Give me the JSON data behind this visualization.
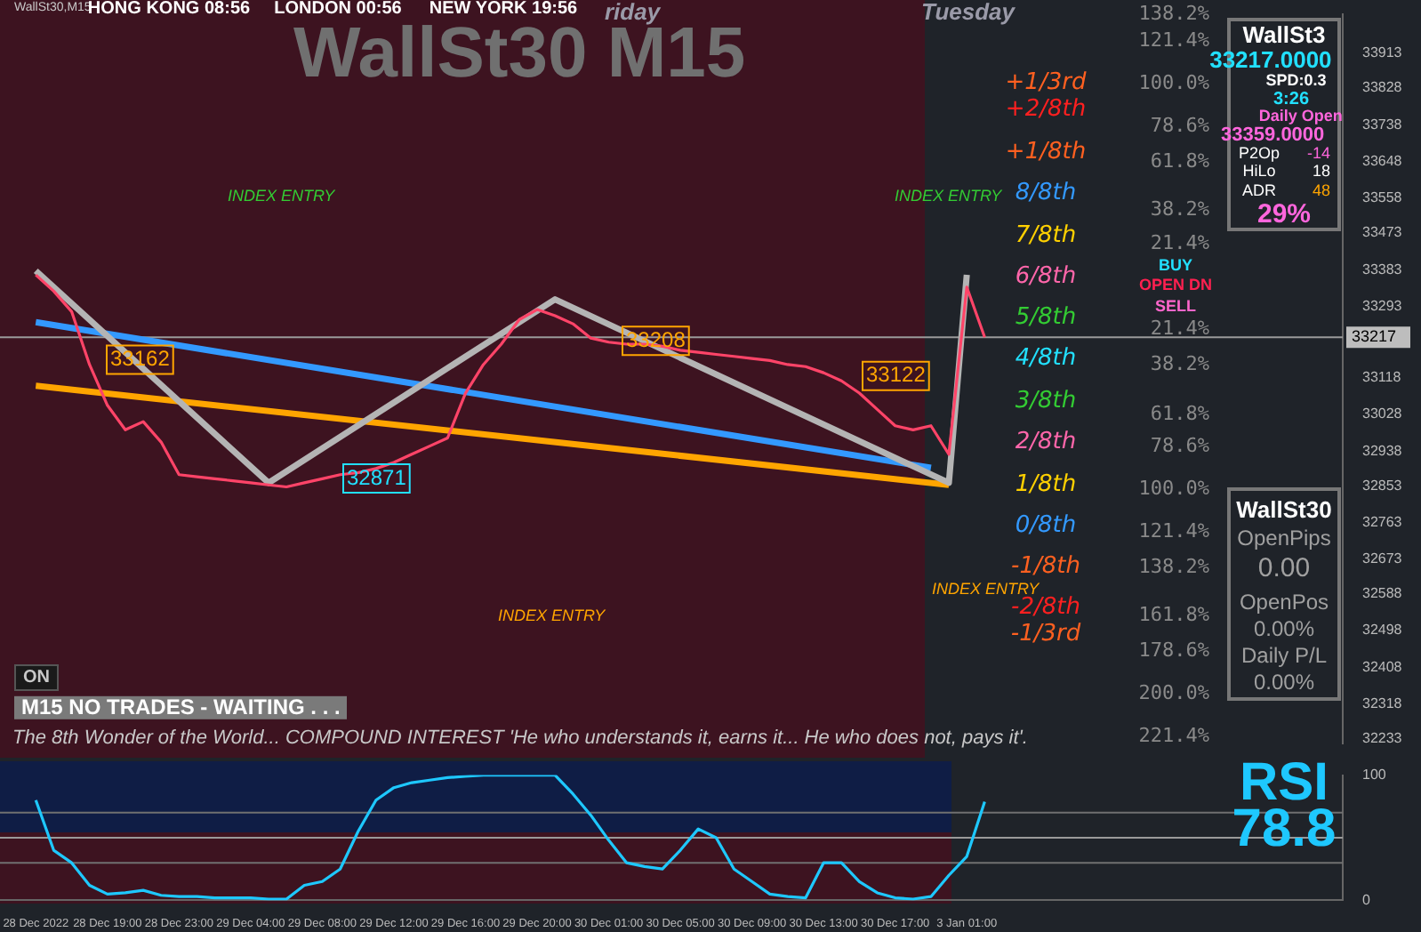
{
  "chart_data": [
    {
      "type": "line",
      "title": "WallSt30 M15",
      "categories": [
        null,
        null,
        null,
        null,
        null,
        null,
        null,
        null,
        null,
        null,
        null,
        null,
        null,
        null,
        null,
        null,
        null,
        null,
        null,
        null,
        null,
        null,
        null,
        null,
        null,
        null,
        null,
        null,
        null,
        null,
        null,
        null,
        null,
        null,
        null,
        null,
        null,
        null,
        null,
        null,
        null,
        null,
        null,
        null,
        null,
        null,
        null,
        null,
        null,
        null,
        null,
        null,
        null,
        null
      ],
      "series": [
        {
          "color": "#ff4468",
          "values": [
            33370,
            33330,
            33280,
            33150,
            33050,
            32990,
            33010,
            32960,
            32880,
            32875,
            32870,
            32865,
            32860,
            32855,
            32850,
            32860,
            32870,
            32880,
            32885,
            32895,
            32910,
            32930,
            32950,
            32970,
            33080,
            33150,
            33200,
            33260,
            33285,
            33270,
            33250,
            33215,
            33205,
            33200,
            33200,
            33195,
            33185,
            33180,
            33175,
            33170,
            33165,
            33160,
            33150,
            33145,
            33130,
            33110,
            33080,
            33040,
            33000,
            32990,
            33000,
            32930,
            33340,
            33217
          ]
        },
        {
          "color": "#b4b4b4",
          "values": [
            33380,
            null,
            null,
            null,
            null,
            null,
            null,
            null,
            null,
            null,
            null,
            null,
            null,
            32860,
            null,
            null,
            null,
            null,
            null,
            null,
            null,
            null,
            null,
            null,
            null,
            null,
            null,
            null,
            null,
            33310,
            null,
            null,
            null,
            null,
            null,
            null,
            null,
            null,
            null,
            null,
            null,
            null,
            null,
            null,
            null,
            null,
            null,
            null,
            null,
            null,
            null,
            32860,
            33370,
            null
          ]
        },
        {
          "color": "#ffa500",
          "values": [
            33098,
            null,
            null,
            null,
            null,
            null,
            null,
            null,
            null,
            null,
            null,
            null,
            null,
            null,
            null,
            null,
            null,
            null,
            null,
            null,
            null,
            null,
            null,
            null,
            null,
            null,
            null,
            null,
            null,
            null,
            null,
            null,
            null,
            null,
            null,
            null,
            null,
            null,
            null,
            null,
            null,
            null,
            null,
            null,
            null,
            null,
            null,
            null,
            null,
            null,
            null,
            32855,
            null,
            null
          ]
        },
        {
          "color": "#3399ff",
          "values": [
            33254,
            null,
            null,
            null,
            null,
            null,
            null,
            null,
            null,
            null,
            null,
            null,
            null,
            null,
            null,
            null,
            null,
            null,
            null,
            null,
            null,
            null,
            null,
            null,
            null,
            null,
            null,
            null,
            null,
            null,
            null,
            null,
            null,
            null,
            null,
            null,
            null,
            null,
            null,
            null,
            null,
            null,
            null,
            null,
            null,
            null,
            null,
            null,
            null,
            null,
            32897,
            null,
            null,
            null
          ]
        }
      ],
      "ylim": [
        32220,
        34010
      ],
      "yticks": [
        33913,
        33828,
        33738,
        33648,
        33558,
        33473,
        33383,
        33293,
        33118,
        33028,
        32938,
        32853,
        32763,
        32673,
        32588,
        32498,
        32408,
        32318,
        32233
      ],
      "ref_lines": [
        {
          "axis": "y",
          "value": 33217,
          "label": "33217",
          "color": "#9a9a9a"
        }
      ],
      "tick_labels": "y",
      "grid": false,
      "legend": false,
      "marker": "none",
      "line_style": "solid",
      "annotations": [
        "WallSt30,M15",
        "HONG KONG 08:56",
        "LONDON 00:56",
        "NEW YORK 19:56",
        "riday",
        "Tuesday",
        "INDEX ENTRY",
        "INDEX ENTRY",
        "INDEX ENTRY",
        "INDEX ENTRY",
        "+1/3rd",
        "+2/8th",
        "+1/8th",
        "8/8th",
        "7/8th",
        "6/8th",
        "5/8th",
        "4/8th",
        "3/8th",
        "2/8th",
        "1/8th",
        "0/8th",
        "-1/8th",
        "-2/8th",
        "-1/3rd",
        "138.2%",
        "121.4%",
        "100.0%",
        "78.6%",
        "61.8%",
        "38.2%",
        "21.4%",
        "21.4%",
        "38.2%",
        "61.8%",
        "78.6%",
        "100.0%",
        "121.4%",
        "138.2%",
        "161.8%",
        "178.6%",
        "200.0%",
        "221.4%",
        "BUY",
        "OPEN DN",
        "SELL",
        "ON",
        "M15  NO TRADES - WAITING . . .",
        "The 8th Wonder of the World... COMPOUND INTEREST 'He who understands it, earns it... He who does not, pays it'.",
        {
          "text": "33162",
          "y": 33162
        },
        {
          "text": "33208",
          "y": 33208
        },
        {
          "text": "33122",
          "y": 33122
        },
        {
          "text": "32871",
          "y": 32871
        }
      ]
    },
    {
      "type": "line",
      "categories": [
        "28 Dec 2022",
        null,
        null,
        null,
        "28 Dec 19:00",
        null,
        null,
        null,
        "28 Dec 23:00",
        null,
        null,
        null,
        "29 Dec 04:00",
        null,
        null,
        null,
        "29 Dec 08:00",
        null,
        null,
        null,
        "29 Dec 12:00",
        null,
        null,
        null,
        "29 Dec 16:00",
        null,
        null,
        null,
        "29 Dec 20:00",
        null,
        null,
        null,
        "30 Dec 01:00",
        null,
        null,
        null,
        "30 Dec 05:00",
        null,
        null,
        null,
        "30 Dec 09:00",
        null,
        null,
        null,
        "30 Dec 13:00",
        null,
        null,
        null,
        "30 Dec 17:00",
        null,
        null,
        null,
        "3 Jan 01:00",
        null
      ],
      "series": [
        {
          "color": "#1ec8ff",
          "values": [
            80,
            40,
            30,
            12,
            5,
            6,
            8,
            4,
            3,
            3,
            2,
            2,
            2,
            1,
            1,
            12,
            15,
            25,
            55,
            80,
            90,
            94,
            96,
            98,
            99,
            100,
            100,
            100,
            100,
            100,
            85,
            68,
            48,
            30,
            27,
            25,
            40,
            57,
            50,
            25,
            15,
            5,
            3,
            2,
            30,
            30,
            15,
            6,
            2,
            1,
            3,
            20,
            35,
            78.8
          ]
        }
      ],
      "ylim": [
        0,
        100
      ],
      "yticks": [
        0,
        100
      ],
      "ref_lines": [
        {
          "axis": "y",
          "value": 70,
          "color": "#707070"
        },
        {
          "axis": "y",
          "value": 50,
          "color": "#9a9a9a"
        },
        {
          "axis": "y",
          "value": 30,
          "color": "#707070"
        }
      ],
      "grid": false,
      "legend": false,
      "marker": "none",
      "line_style": "solid",
      "annotations": [
        "RSI",
        "78.8"
      ]
    },
    {
      "type": "other",
      "annotations": [
        "WallSt3",
        "33217.0000",
        "SPD:0.3",
        "3:26",
        "Daily Open",
        "33359.0000",
        "P2Op",
        "-14",
        "HiLo",
        "18",
        "ADR",
        "48",
        "29%",
        "WallSt30",
        "OpenPips",
        "0.00",
        "OpenPos",
        "0.00%",
        "Daily P/L",
        "0.00%"
      ]
    }
  ]
}
